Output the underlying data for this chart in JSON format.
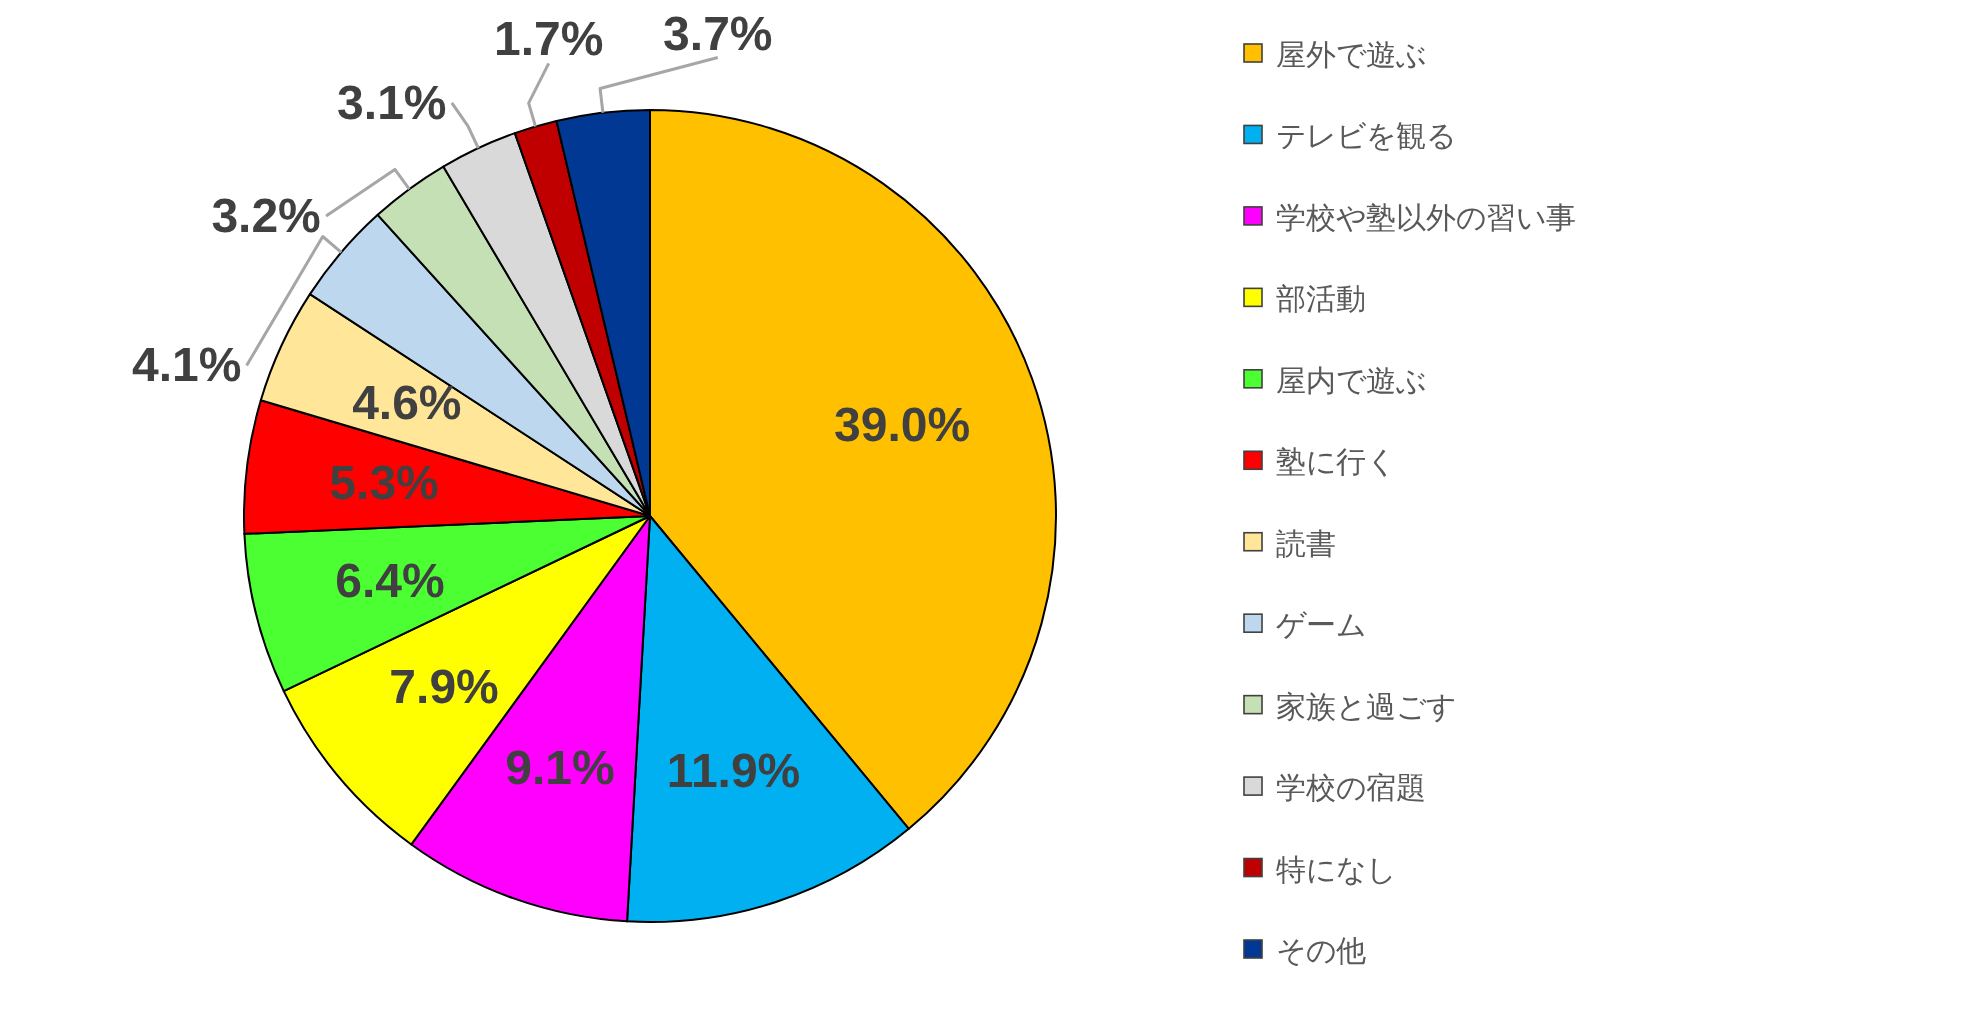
{
  "chart_data": {
    "type": "pie",
    "legend": "right",
    "categories": [
      "屋外で遊ぶ",
      "テレビを観る",
      "学校や塾以外の習い事",
      "部活動",
      "屋内で遊ぶ",
      "塾に行く",
      "読書",
      "ゲーム",
      "家族と過ごす",
      "学校の宿題",
      "特になし",
      "その他"
    ],
    "values": [
      39.0,
      11.9,
      9.1,
      7.9,
      6.4,
      5.3,
      4.6,
      4.1,
      3.2,
      3.1,
      1.7,
      3.7
    ],
    "value_labels": [
      "39.0%",
      "11.9%",
      "9.1%",
      "7.9%",
      "6.4%",
      "5.3%",
      "4.6%",
      "4.1%",
      "3.2%",
      "3.1%",
      "1.7%",
      "3.7%"
    ],
    "colors": [
      "#ffc000",
      "#00b0f0",
      "#ff00ff",
      "#ffff00",
      "#4cff33",
      "#ff0000",
      "#ffe699",
      "#bdd7ee",
      "#c5e0b4",
      "#d9d9d9",
      "#c00000",
      "#003893"
    ]
  }
}
